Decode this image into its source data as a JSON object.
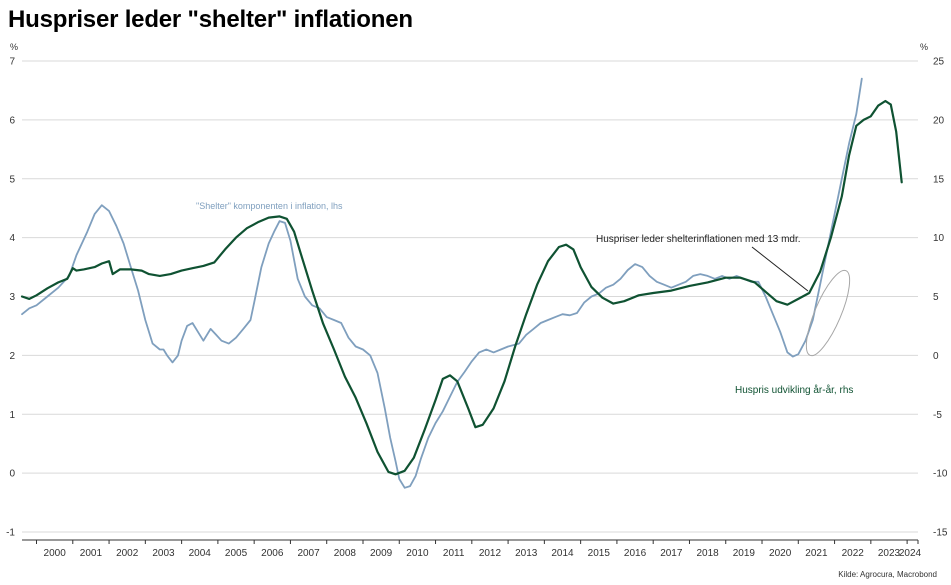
{
  "title": "Huspriser leder \"shelter\" inflationen",
  "source": "Kilde: Agrocura, Macrobond",
  "chart_data": {
    "type": "line",
    "title": "Huspriser leder \"shelter\" inflationen",
    "left_axis": {
      "unit": "%",
      "min": -1,
      "max": 7,
      "ticks": [
        -1,
        0,
        1,
        2,
        3,
        4,
        5,
        6,
        7
      ]
    },
    "right_axis": {
      "unit": "%",
      "min": -15,
      "max": 25,
      "ticks": [
        -15,
        -10,
        -5,
        0,
        5,
        10,
        15,
        20,
        25
      ]
    },
    "x_axis": {
      "start": 1999.6,
      "end": 2024.3,
      "tick_labels": [
        "2000",
        "2001",
        "2002",
        "2003",
        "2004",
        "2005",
        "2006",
        "2007",
        "2008",
        "2009",
        "2010",
        "2011",
        "2012",
        "2013",
        "2014",
        "2015",
        "2016",
        "2017",
        "2018",
        "2019",
        "2020",
        "2021",
        "2022",
        "2023",
        "2024"
      ]
    },
    "grid": "horizontal",
    "colors": {
      "shelter": "#7f9fbe",
      "huspris": "#0f5232",
      "grid": "#d9d9d9",
      "ellipse": "#a6a6a6"
    },
    "series": [
      {
        "name": "\"Shelter\" komponenten i inflation, lhs",
        "axis": "left",
        "points": [
          [
            1999.6,
            2.7
          ],
          [
            1999.8,
            2.8
          ],
          [
            2000.0,
            2.85
          ],
          [
            2000.3,
            3.0
          ],
          [
            2000.6,
            3.15
          ],
          [
            2000.9,
            3.35
          ],
          [
            2001.1,
            3.7
          ],
          [
            2001.4,
            4.1
          ],
          [
            2001.6,
            4.4
          ],
          [
            2001.8,
            4.55
          ],
          [
            2002.0,
            4.45
          ],
          [
            2002.2,
            4.2
          ],
          [
            2002.4,
            3.9
          ],
          [
            2002.6,
            3.5
          ],
          [
            2002.8,
            3.1
          ],
          [
            2003.0,
            2.6
          ],
          [
            2003.2,
            2.2
          ],
          [
            2003.4,
            2.1
          ],
          [
            2003.5,
            2.1
          ],
          [
            2003.6,
            2.0
          ],
          [
            2003.75,
            1.88
          ],
          [
            2003.9,
            2.0
          ],
          [
            2004.0,
            2.25
          ],
          [
            2004.15,
            2.5
          ],
          [
            2004.3,
            2.55
          ],
          [
            2004.45,
            2.4
          ],
          [
            2004.6,
            2.25
          ],
          [
            2004.8,
            2.45
          ],
          [
            2004.95,
            2.35
          ],
          [
            2005.1,
            2.25
          ],
          [
            2005.3,
            2.2
          ],
          [
            2005.5,
            2.3
          ],
          [
            2005.7,
            2.45
          ],
          [
            2005.9,
            2.6
          ],
          [
            2006.0,
            2.9
          ],
          [
            2006.2,
            3.5
          ],
          [
            2006.4,
            3.9
          ],
          [
            2006.55,
            4.1
          ],
          [
            2006.7,
            4.28
          ],
          [
            2006.85,
            4.25
          ],
          [
            2007.0,
            3.95
          ],
          [
            2007.2,
            3.3
          ],
          [
            2007.4,
            3.0
          ],
          [
            2007.6,
            2.85
          ],
          [
            2007.8,
            2.8
          ],
          [
            2008.0,
            2.65
          ],
          [
            2008.2,
            2.6
          ],
          [
            2008.4,
            2.55
          ],
          [
            2008.6,
            2.3
          ],
          [
            2008.8,
            2.15
          ],
          [
            2009.0,
            2.1
          ],
          [
            2009.2,
            2.0
          ],
          [
            2009.4,
            1.7
          ],
          [
            2009.6,
            1.1
          ],
          [
            2009.75,
            0.6
          ],
          [
            2009.9,
            0.2
          ],
          [
            2010.0,
            -0.1
          ],
          [
            2010.15,
            -0.25
          ],
          [
            2010.3,
            -0.22
          ],
          [
            2010.45,
            -0.05
          ],
          [
            2010.6,
            0.25
          ],
          [
            2010.8,
            0.6
          ],
          [
            2011.0,
            0.85
          ],
          [
            2011.2,
            1.05
          ],
          [
            2011.4,
            1.3
          ],
          [
            2011.6,
            1.55
          ],
          [
            2011.8,
            1.72
          ],
          [
            2012.0,
            1.9
          ],
          [
            2012.2,
            2.05
          ],
          [
            2012.4,
            2.1
          ],
          [
            2012.6,
            2.05
          ],
          [
            2012.8,
            2.1
          ],
          [
            2013.0,
            2.15
          ],
          [
            2013.3,
            2.2
          ],
          [
            2013.5,
            2.35
          ],
          [
            2013.7,
            2.45
          ],
          [
            2013.9,
            2.55
          ],
          [
            2014.1,
            2.6
          ],
          [
            2014.3,
            2.65
          ],
          [
            2014.5,
            2.7
          ],
          [
            2014.7,
            2.68
          ],
          [
            2014.9,
            2.72
          ],
          [
            2015.1,
            2.9
          ],
          [
            2015.3,
            3.0
          ],
          [
            2015.5,
            3.05
          ],
          [
            2015.7,
            3.15
          ],
          [
            2015.9,
            3.2
          ],
          [
            2016.1,
            3.3
          ],
          [
            2016.3,
            3.45
          ],
          [
            2016.5,
            3.55
          ],
          [
            2016.7,
            3.5
          ],
          [
            2016.9,
            3.35
          ],
          [
            2017.1,
            3.25
          ],
          [
            2017.3,
            3.2
          ],
          [
            2017.5,
            3.15
          ],
          [
            2017.7,
            3.2
          ],
          [
            2017.9,
            3.25
          ],
          [
            2018.1,
            3.35
          ],
          [
            2018.3,
            3.38
          ],
          [
            2018.5,
            3.35
          ],
          [
            2018.7,
            3.3
          ],
          [
            2018.9,
            3.35
          ],
          [
            2019.1,
            3.3
          ],
          [
            2019.3,
            3.35
          ],
          [
            2019.5,
            3.3
          ],
          [
            2019.7,
            3.25
          ],
          [
            2019.9,
            3.25
          ],
          [
            2020.1,
            3.0
          ],
          [
            2020.3,
            2.7
          ],
          [
            2020.5,
            2.4
          ],
          [
            2020.7,
            2.05
          ],
          [
            2020.85,
            1.98
          ],
          [
            2021.0,
            2.02
          ],
          [
            2021.2,
            2.25
          ],
          [
            2021.4,
            2.6
          ],
          [
            2021.6,
            3.2
          ],
          [
            2021.8,
            3.8
          ],
          [
            2022.0,
            4.4
          ],
          [
            2022.2,
            5.0
          ],
          [
            2022.4,
            5.6
          ],
          [
            2022.6,
            6.1
          ],
          [
            2022.75,
            6.7
          ]
        ]
      },
      {
        "name": "Huspris udvikling år-år, rhs",
        "axis": "right",
        "points": [
          [
            1999.6,
            5.0
          ],
          [
            1999.8,
            4.8
          ],
          [
            2000.0,
            5.1
          ],
          [
            2000.3,
            5.7
          ],
          [
            2000.6,
            6.2
          ],
          [
            2000.85,
            6.5
          ],
          [
            2001.0,
            7.4
          ],
          [
            2001.1,
            7.2
          ],
          [
            2001.3,
            7.3
          ],
          [
            2001.6,
            7.5
          ],
          [
            2001.8,
            7.8
          ],
          [
            2002.0,
            8.0
          ],
          [
            2002.1,
            6.9
          ],
          [
            2002.3,
            7.3
          ],
          [
            2002.6,
            7.3
          ],
          [
            2002.9,
            7.2
          ],
          [
            2003.1,
            6.9
          ],
          [
            2003.4,
            6.75
          ],
          [
            2003.7,
            6.9
          ],
          [
            2004.0,
            7.2
          ],
          [
            2004.3,
            7.4
          ],
          [
            2004.6,
            7.6
          ],
          [
            2004.9,
            7.9
          ],
          [
            2005.2,
            9.0
          ],
          [
            2005.5,
            10.0
          ],
          [
            2005.8,
            10.8
          ],
          [
            2006.1,
            11.3
          ],
          [
            2006.4,
            11.7
          ],
          [
            2006.7,
            11.8
          ],
          [
            2006.9,
            11.6
          ],
          [
            2007.1,
            10.5
          ],
          [
            2007.3,
            8.5
          ],
          [
            2007.6,
            5.5
          ],
          [
            2007.9,
            2.7
          ],
          [
            2008.2,
            0.5
          ],
          [
            2008.5,
            -1.8
          ],
          [
            2008.8,
            -3.6
          ],
          [
            2009.1,
            -5.8
          ],
          [
            2009.4,
            -8.2
          ],
          [
            2009.7,
            -9.9
          ],
          [
            2009.9,
            -10.1
          ],
          [
            2010.15,
            -9.8
          ],
          [
            2010.4,
            -8.7
          ],
          [
            2010.7,
            -6.3
          ],
          [
            2011.0,
            -3.8
          ],
          [
            2011.2,
            -2.0
          ],
          [
            2011.4,
            -1.7
          ],
          [
            2011.6,
            -2.2
          ],
          [
            2011.9,
            -4.5
          ],
          [
            2012.1,
            -6.1
          ],
          [
            2012.3,
            -5.9
          ],
          [
            2012.6,
            -4.5
          ],
          [
            2012.9,
            -2.2
          ],
          [
            2013.2,
            0.8
          ],
          [
            2013.5,
            3.5
          ],
          [
            2013.8,
            6.0
          ],
          [
            2014.1,
            8.0
          ],
          [
            2014.4,
            9.2
          ],
          [
            2014.6,
            9.4
          ],
          [
            2014.8,
            9.0
          ],
          [
            2015.0,
            7.5
          ],
          [
            2015.3,
            5.8
          ],
          [
            2015.6,
            4.9
          ],
          [
            2015.9,
            4.4
          ],
          [
            2016.2,
            4.6
          ],
          [
            2016.6,
            5.1
          ],
          [
            2017.0,
            5.3
          ],
          [
            2017.5,
            5.5
          ],
          [
            2018.0,
            5.9
          ],
          [
            2018.5,
            6.2
          ],
          [
            2019.0,
            6.6
          ],
          [
            2019.4,
            6.6
          ],
          [
            2019.8,
            6.2
          ],
          [
            2020.1,
            5.4
          ],
          [
            2020.4,
            4.6
          ],
          [
            2020.7,
            4.3
          ],
          [
            2021.0,
            4.8
          ],
          [
            2021.3,
            5.3
          ],
          [
            2021.6,
            7.1
          ],
          [
            2021.9,
            10.0
          ],
          [
            2022.2,
            13.5
          ],
          [
            2022.4,
            17.0
          ],
          [
            2022.6,
            19.5
          ],
          [
            2022.8,
            20.0
          ],
          [
            2023.0,
            20.3
          ],
          [
            2023.2,
            21.2
          ],
          [
            2023.4,
            21.6
          ],
          [
            2023.55,
            21.3
          ],
          [
            2023.7,
            19.0
          ],
          [
            2023.85,
            14.7
          ]
        ]
      }
    ],
    "annotations": {
      "shelter_label": "\"Shelter\" komponenten i inflation, lhs",
      "huspris_label": "Huspris udvikling år-år, rhs",
      "callout": "Huspriser leder shelterinflationen med 13 mdr."
    }
  }
}
